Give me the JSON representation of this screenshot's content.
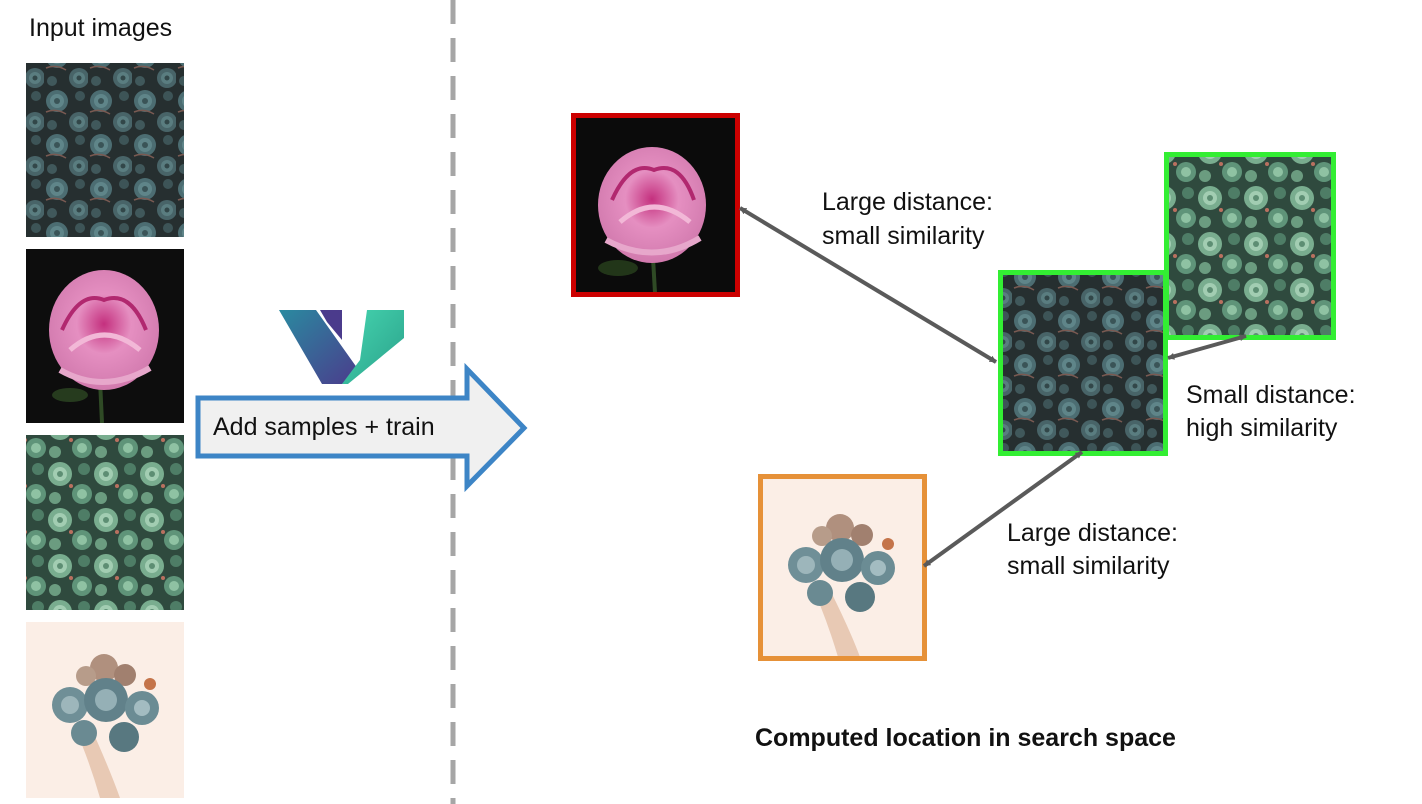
{
  "left_panel": {
    "title": "Input images",
    "images": [
      {
        "id": "succulents-dark",
        "icon": "succulent-cluster-dark-photo"
      },
      {
        "id": "peony",
        "icon": "pink-peony-photo"
      },
      {
        "id": "succulents-green",
        "icon": "succulent-cluster-green-photo"
      },
      {
        "id": "succulent-bouquet",
        "icon": "succulent-bouquet-in-hand-photo"
      }
    ]
  },
  "process": {
    "label": "Add samples + train",
    "logo_icon": "v-logo-icon",
    "arrow_color": "#3d85c6",
    "arrow_fill": "#f0f0f0"
  },
  "search_space": {
    "title": "Computed location in search space",
    "labels": {
      "peony": [
        "Large distance:",
        "small similarity"
      ],
      "green": [
        "Small distance:",
        "high similarity"
      ],
      "bouquet": [
        "Large distance:",
        "small similarity"
      ]
    },
    "frame_colors": {
      "peony": "#cc0000",
      "center": "#33ee33",
      "green": "#33ee33",
      "bouquet": "#e69138"
    }
  }
}
